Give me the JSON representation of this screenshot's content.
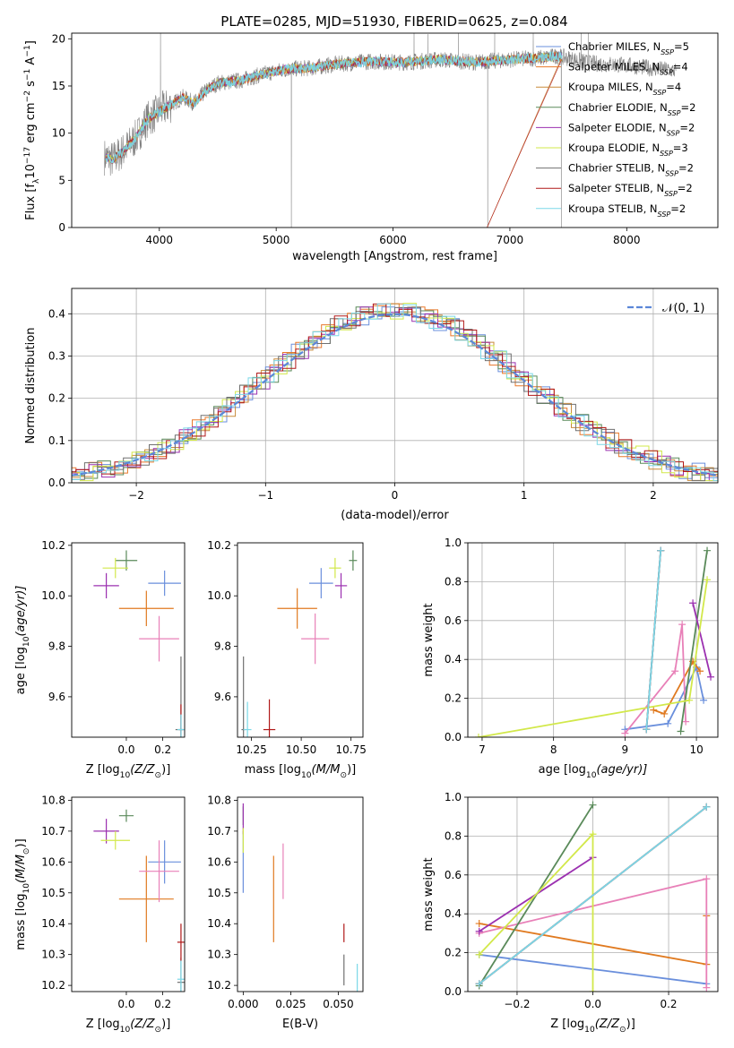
{
  "figure": {
    "title": "PLATE=0285, MJD=51930, FIBERID=0625, z=0.084"
  },
  "colors": {
    "series": [
      "#6a8fdc",
      "#e8782a",
      "#c88a3a",
      "#5a8a5a",
      "#9b30b0",
      "#d2e84a",
      "#707070",
      "#b01818",
      "#7ad8e8"
    ],
    "extra": [
      "#e07a20",
      "#e880b8"
    ],
    "gaussian": "#5b87d8",
    "grid": "#b0b0b0",
    "spectrum_gray": "#808080"
  },
  "chart_data": [
    {
      "id": "spectrum",
      "type": "line",
      "title": "PLATE=0285, MJD=51930, FIBERID=0625, z=0.084",
      "xlabel": "wavelength [Angstrom, rest frame]",
      "ylabel": "Flux [f",
      "ylabel_parts": [
        "Flux [f",
        "λ",
        "10",
        "−17",
        " erg cm",
        "−2",
        " s",
        "−1",
        " A",
        "−1",
        "]"
      ],
      "xlim": [
        3250,
        8780
      ],
      "ylim": [
        0,
        20.6
      ],
      "xticks": [
        4000,
        5000,
        6000,
        7000,
        8000
      ],
      "yticks": [
        0,
        5,
        10,
        15,
        20
      ],
      "grid": false,
      "legend_position": "upper-right",
      "legend": [
        {
          "label": "Chabrier MILES, N",
          "sub": "SSP",
          "tail": "=5"
        },
        {
          "label": "Salpeter MILES, N",
          "sub": "SSP",
          "tail": "=4"
        },
        {
          "label": "Kroupa MILES, N",
          "sub": "SSP",
          "tail": "=4"
        },
        {
          "label": "Chabrier ELODIE, N",
          "sub": "SSP",
          "tail": "=2"
        },
        {
          "label": "Salpeter ELODIE, N",
          "sub": "SSP",
          "tail": "=2"
        },
        {
          "label": "Kroupa ELODIE, N",
          "sub": "SSP",
          "tail": "=3"
        },
        {
          "label": "Chabrier STELIB, N",
          "sub": "SSP",
          "tail": "=2"
        },
        {
          "label": "Salpeter STELIB, N",
          "sub": "SSP",
          "tail": "=2"
        },
        {
          "label": "Kroupa STELIB, N",
          "sub": "SSP",
          "tail": "=2"
        }
      ],
      "continuum": [
        [
          3530,
          7.5
        ],
        [
          3600,
          7.2
        ],
        [
          3700,
          8.2
        ],
        [
          3800,
          9.5
        ],
        [
          3900,
          11.5
        ],
        [
          4000,
          12.3
        ],
        [
          4100,
          13.0
        ],
        [
          4200,
          13.8
        ],
        [
          4300,
          13.2
        ],
        [
          4400,
          14.5
        ],
        [
          4500,
          15.3
        ],
        [
          4700,
          15.6
        ],
        [
          4900,
          16.3
        ],
        [
          5100,
          16.8
        ],
        [
          5300,
          16.9
        ],
        [
          5500,
          17.3
        ],
        [
          5800,
          17.6
        ],
        [
          6100,
          17.5
        ],
        [
          6400,
          17.8
        ],
        [
          6700,
          17.5
        ],
        [
          7000,
          17.8
        ],
        [
          7300,
          18.0
        ],
        [
          7400,
          18.2
        ],
        [
          7700,
          17.4
        ],
        [
          8000,
          17.2
        ],
        [
          8200,
          16.9
        ],
        [
          8420,
          16.6
        ]
      ],
      "spikes": [
        [
          4010,
          20.8
        ],
        [
          5130,
          0
        ],
        [
          6180,
          20.8
        ],
        [
          6300,
          20.5
        ],
        [
          6810,
          0
        ],
        [
          7440,
          0
        ],
        [
          6560,
          20.7
        ],
        [
          6870,
          20.6
        ],
        [
          7200,
          20.6
        ],
        [
          7610,
          20.6
        ],
        [
          7670,
          20.7
        ]
      ]
    },
    {
      "id": "residuals",
      "type": "histogram",
      "xlabel": "(data-model)/error",
      "ylabel": "Normed distribution",
      "xlim": [
        -2.5,
        2.5
      ],
      "ylim": [
        0,
        0.46
      ],
      "xticks": [
        -2,
        -1,
        0,
        1,
        2
      ],
      "xtick_labels": [
        "−2",
        "−1",
        "0",
        "1",
        "2"
      ],
      "yticks": [
        0.0,
        0.1,
        0.2,
        0.3,
        0.4
      ],
      "ytick_labels": [
        "0.0",
        "0.1",
        "0.2",
        "0.3",
        "0.4"
      ],
      "grid": true,
      "legend_position": "upper-right",
      "legend": [
        {
          "label": "𝒩(0, 1)"
        }
      ],
      "bin_width": 0.1,
      "gaussian": {
        "mu": 0,
        "sigma": 1
      }
    },
    {
      "id": "age-vs-z",
      "type": "errorbar",
      "xlabel": "Z [log10(Z/Z⊙)]",
      "xlabel_parts": [
        "Z [log",
        "10",
        "(Z/Z",
        "⊙",
        ")]"
      ],
      "ylabel": "age  [log10(age/yr)]",
      "ylabel_parts": [
        "age  [log",
        "10",
        "(age/yr)]"
      ],
      "xlim": [
        -0.3,
        0.32
      ],
      "ylim": [
        9.44,
        10.21
      ],
      "xticks": [
        0.0,
        0.2
      ],
      "xtick_labels": [
        "0.0",
        "0.2"
      ],
      "yticks": [
        9.6,
        9.8,
        10.0,
        10.2
      ],
      "ytick_labels": [
        "9.6",
        "9.8",
        "10.0",
        "10.2"
      ],
      "points": [
        {
          "color": "#6a8fdc",
          "x": 0.21,
          "y": 10.05,
          "xerr": 0.09,
          "yerr": 0.05
        },
        {
          "color": "#e07a20",
          "x": 0.11,
          "y": 9.95,
          "xerr": 0.15,
          "yerr": 0.07
        },
        {
          "color": "#e880b8",
          "x": 0.18,
          "y": 9.83,
          "xerr": 0.11,
          "yerr": 0.09
        },
        {
          "color": "#5a8a5a",
          "x": 0.0,
          "y": 10.14,
          "xerr": 0.06,
          "yerr": 0.04
        },
        {
          "color": "#9b30b0",
          "x": -0.11,
          "y": 10.04,
          "xerr": 0.07,
          "yerr": 0.05
        },
        {
          "color": "#d2e84a",
          "x": -0.06,
          "y": 10.11,
          "xerr": 0.07,
          "yerr": 0.04
        },
        {
          "color": "#707070",
          "x": 0.3,
          "y": 9.47,
          "xerr": 0.03,
          "yerr": 0.29
        },
        {
          "color": "#b01818",
          "x": 0.3,
          "y": 9.47,
          "xerr": 0.01,
          "yerr": 0.1
        },
        {
          "color": "#7ad8e8",
          "x": 0.3,
          "y": 9.47,
          "xerr": 0.02,
          "yerr": 0.06
        }
      ]
    },
    {
      "id": "age-vs-mass",
      "type": "errorbar",
      "xlabel": "mass [log10(M/M⊙)]",
      "xlabel_parts": [
        "mass [log",
        "10",
        "(M/M",
        "⊙",
        ")]"
      ],
      "ylabel": "",
      "xlim": [
        10.18,
        10.81
      ],
      "ylim": [
        9.44,
        10.21
      ],
      "xticks": [
        10.25,
        10.5,
        10.75
      ],
      "xtick_labels": [
        "10.25",
        "10.50",
        "10.75"
      ],
      "yticks": [
        9.6,
        9.8,
        10.0,
        10.2
      ],
      "ytick_labels": [
        "9.6",
        "9.8",
        "10.0",
        "10.2"
      ],
      "points": [
        {
          "color": "#6a8fdc",
          "x": 10.6,
          "y": 10.05,
          "xerr": 0.06,
          "yerr": 0.06
        },
        {
          "color": "#e07a20",
          "x": 10.48,
          "y": 9.95,
          "xerr": 0.1,
          "yerr": 0.08
        },
        {
          "color": "#e880b8",
          "x": 10.57,
          "y": 9.83,
          "xerr": 0.07,
          "yerr": 0.1
        },
        {
          "color": "#5a8a5a",
          "x": 10.76,
          "y": 10.14,
          "xerr": 0.02,
          "yerr": 0.04
        },
        {
          "color": "#9b30b0",
          "x": 10.7,
          "y": 10.04,
          "xerr": 0.03,
          "yerr": 0.05
        },
        {
          "color": "#d2e84a",
          "x": 10.67,
          "y": 10.11,
          "xerr": 0.03,
          "yerr": 0.04
        },
        {
          "color": "#707070",
          "x": 10.21,
          "y": 9.47,
          "xerr": 0.01,
          "yerr": 0.29
        },
        {
          "color": "#b01818",
          "x": 10.34,
          "y": 9.47,
          "xerr": 0.03,
          "yerr": 0.12
        },
        {
          "color": "#7ad8e8",
          "x": 10.23,
          "y": 9.47,
          "xerr": 0.02,
          "yerr": 0.11
        }
      ]
    },
    {
      "id": "weight-vs-age",
      "type": "line",
      "xlabel": "age  [log10(age/yr)]",
      "xlabel_parts": [
        "age  [log",
        "10",
        "(age/yr)]"
      ],
      "ylabel": "mass weight",
      "xlim": [
        6.8,
        10.3
      ],
      "ylim": [
        0,
        1.0
      ],
      "xticks": [
        7,
        8,
        9,
        10
      ],
      "xtick_labels": [
        "7",
        "8",
        "9",
        "10"
      ],
      "yticks": [
        0.0,
        0.2,
        0.4,
        0.6,
        0.8,
        1.0
      ],
      "ytick_labels": [
        "0.0",
        "0.2",
        "0.4",
        "0.6",
        "0.8",
        "1.0"
      ],
      "grid": true,
      "series": [
        {
          "color": "#6a8fdc",
          "x": [
            9.0,
            9.6,
            10.0,
            10.1
          ],
          "y": [
            0.04,
            0.07,
            0.36,
            0.19
          ]
        },
        {
          "color": "#e07a20",
          "x": [
            9.4,
            9.55,
            9.95,
            10.05
          ],
          "y": [
            0.14,
            0.12,
            0.39,
            0.34
          ]
        },
        {
          "color": "#e880b8",
          "x": [
            9.0,
            9.7,
            9.8,
            9.85
          ],
          "y": [
            0.02,
            0.34,
            0.58,
            0.08
          ]
        },
        {
          "color": "#5a8a5a",
          "x": [
            9.78,
            10.15
          ],
          "y": [
            0.03,
            0.96
          ]
        },
        {
          "color": "#9b30b0",
          "x": [
            9.95,
            10.2
          ],
          "y": [
            0.69,
            0.31
          ]
        },
        {
          "color": "#d2e84a",
          "x": [
            6.95,
            9.9,
            10.15
          ],
          "y": [
            0.0,
            0.19,
            0.81
          ]
        },
        {
          "color": "#707070",
          "x": [
            9.3,
            9.5
          ],
          "y": [
            0.04,
            0.96
          ]
        },
        {
          "color": "#b01818",
          "x": [
            9.3,
            9.5
          ],
          "y": [
            0.04,
            0.96
          ]
        },
        {
          "color": "#7ad8e8",
          "x": [
            9.3,
            9.5
          ],
          "y": [
            0.04,
            0.96
          ]
        }
      ]
    },
    {
      "id": "mass-vs-z",
      "type": "errorbar",
      "xlabel": "Z [log10(Z/Z⊙)]",
      "xlabel_parts": [
        "Z [log",
        "10",
        "(Z/Z",
        "⊙",
        ")]"
      ],
      "ylabel": "mass [log10(M/M⊙)]",
      "ylabel_parts": [
        "mass [log",
        "10",
        "(M/M",
        "⊙",
        ")]"
      ],
      "xlim": [
        -0.3,
        0.32
      ],
      "ylim": [
        10.18,
        10.81
      ],
      "xticks": [
        0.0,
        0.2
      ],
      "xtick_labels": [
        "0.0",
        "0.2"
      ],
      "yticks": [
        10.2,
        10.3,
        10.4,
        10.5,
        10.6,
        10.7,
        10.8
      ],
      "ytick_labels": [
        "10.2",
        "10.3",
        "10.4",
        "10.5",
        "10.6",
        "10.7",
        "10.8"
      ],
      "points": [
        {
          "color": "#6a8fdc",
          "x": 0.21,
          "y": 10.6,
          "xerr": 0.09,
          "yerr": 0.07
        },
        {
          "color": "#e07a20",
          "x": 0.11,
          "y": 10.48,
          "xerr": 0.15,
          "yerr": 0.14
        },
        {
          "color": "#e880b8",
          "x": 0.18,
          "y": 10.57,
          "xerr": 0.11,
          "yerr": 0.1
        },
        {
          "color": "#5a8a5a",
          "x": 0.0,
          "y": 10.75,
          "xerr": 0.04,
          "yerr": 0.02
        },
        {
          "color": "#9b30b0",
          "x": -0.11,
          "y": 10.7,
          "xerr": 0.07,
          "yerr": 0.04
        },
        {
          "color": "#d2e84a",
          "x": -0.06,
          "y": 10.67,
          "xerr": 0.08,
          "yerr": 0.03
        },
        {
          "color": "#707070",
          "x": 0.3,
          "y": 10.21,
          "xerr": 0.02,
          "yerr": 0.08
        },
        {
          "color": "#b01818",
          "x": 0.3,
          "y": 10.34,
          "xerr": 0.02,
          "yerr": 0.06
        },
        {
          "color": "#7ad8e8",
          "x": 0.3,
          "y": 10.22,
          "xerr": 0.02,
          "yerr": 0.06
        }
      ]
    },
    {
      "id": "mass-vs-ebv",
      "type": "errorbar",
      "xlabel": "E(B-V)",
      "ylabel": "",
      "xlim": [
        -0.003,
        0.063
      ],
      "ylim": [
        10.18,
        10.81
      ],
      "xticks": [
        0.0,
        0.025,
        0.05
      ],
      "xtick_labels": [
        "0.000",
        "0.025",
        "0.050"
      ],
      "yticks": [
        10.2,
        10.3,
        10.4,
        10.5,
        10.6,
        10.7,
        10.8
      ],
      "ytick_labels": [
        "10.2",
        "10.3",
        "10.4",
        "10.5",
        "10.6",
        "10.7",
        "10.8"
      ],
      "points": [
        {
          "color": "#6a8fdc",
          "x": 0.0,
          "y": 10.6,
          "xerr": 0,
          "yerr": 0.1
        },
        {
          "color": "#e07a20",
          "x": 0.016,
          "y": 10.48,
          "xerr": 0,
          "yerr": 0.14
        },
        {
          "color": "#e880b8",
          "x": 0.021,
          "y": 10.57,
          "xerr": 0,
          "yerr": 0.09
        },
        {
          "color": "#5a8a5a",
          "x": 0.0,
          "y": 10.75,
          "xerr": 0,
          "yerr": 0.03
        },
        {
          "color": "#9b30b0",
          "x": 0.0,
          "y": 10.74,
          "xerr": 0,
          "yerr": 0.05
        },
        {
          "color": "#d2e84a",
          "x": 0.0,
          "y": 10.67,
          "xerr": 0,
          "yerr": 0.04
        },
        {
          "color": "#707070",
          "x": 0.053,
          "y": 10.25,
          "xerr": 0,
          "yerr": 0.05
        },
        {
          "color": "#b01818",
          "x": 0.053,
          "y": 10.37,
          "xerr": 0,
          "yerr": 0.03
        },
        {
          "color": "#7ad8e8",
          "x": 0.06,
          "y": 10.22,
          "xerr": 0,
          "yerr": 0.05
        }
      ]
    },
    {
      "id": "weight-vs-z",
      "type": "line",
      "xlabel": "Z [log10(Z/Z⊙)]",
      "xlabel_parts": [
        "Z [log",
        "10",
        "(Z/Z",
        "⊙",
        ")]"
      ],
      "ylabel": "mass weight",
      "xlim": [
        -0.33,
        0.33
      ],
      "ylim": [
        0,
        1.0
      ],
      "xticks": [
        -0.2,
        0.0,
        0.2
      ],
      "xtick_labels": [
        "−0.2",
        "0.0",
        "0.2"
      ],
      "yticks": [
        0.0,
        0.2,
        0.4,
        0.6,
        0.8,
        1.0
      ],
      "ytick_labels": [
        "0.0",
        "0.2",
        "0.4",
        "0.6",
        "0.8",
        "1.0"
      ],
      "grid": true,
      "series": [
        {
          "color": "#6a8fdc",
          "x": [
            -0.3,
            0.3
          ],
          "y": [
            0.19,
            0.04
          ]
        },
        {
          "color": "#e07a20",
          "x": [
            -0.3,
            0.3,
            0.3
          ],
          "y": [
            0.35,
            0.14,
            0.39
          ]
        },
        {
          "color": "#e880b8",
          "x": [
            -0.3,
            0.3,
            0.3
          ],
          "y": [
            0.3,
            0.58,
            0.02
          ]
        },
        {
          "color": "#5a8a5a",
          "x": [
            -0.3,
            0.0
          ],
          "y": [
            0.03,
            0.96
          ]
        },
        {
          "color": "#9b30b0",
          "x": [
            -0.3,
            0.0
          ],
          "y": [
            0.31,
            0.69
          ]
        },
        {
          "color": "#d2e84a",
          "x": [
            -0.3,
            0.0,
            0.0
          ],
          "y": [
            0.19,
            0.81,
            0.0
          ]
        },
        {
          "color": "#707070",
          "x": [
            -0.3,
            0.3
          ],
          "y": [
            0.04,
            0.95
          ]
        },
        {
          "color": "#b01818",
          "x": [
            -0.3,
            0.3
          ],
          "y": [
            0.04,
            0.95
          ]
        },
        {
          "color": "#7ad8e8",
          "x": [
            -0.3,
            0.3
          ],
          "y": [
            0.04,
            0.95
          ]
        }
      ]
    }
  ]
}
